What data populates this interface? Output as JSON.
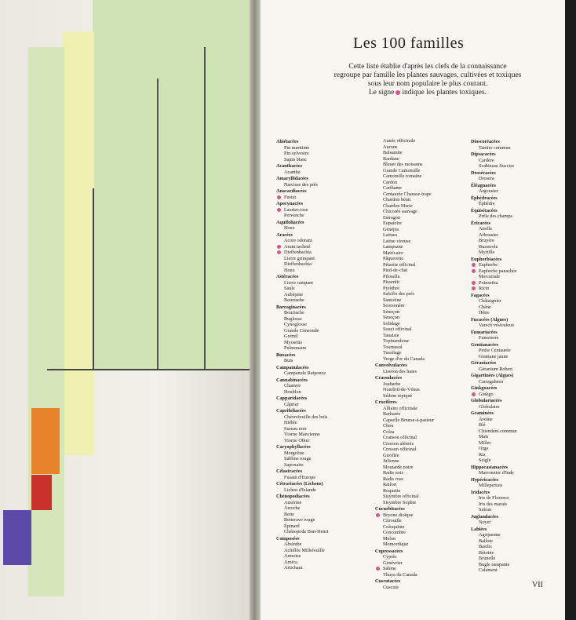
{
  "title": "Les 100 familles",
  "intro": {
    "line1": "Cette liste établie d'après les clefs de la connaissance",
    "line2": "regroupe par famille les plantes sauvages, cultivées et toxiques",
    "line3": "sous leur nom populaire le plus courant.",
    "line4a": "Le signe",
    "line4b": "indique les plantes toxiques."
  },
  "colors": {
    "toxic_dot": "#e0508a",
    "green_band": "#cfe3b4",
    "yellow_band": "#eef0b0",
    "orange_box": "#e8842c",
    "red_box": "#c8322a",
    "purple_box": "#5b4aa8"
  },
  "page_number": "VII",
  "columns": [
    [
      {
        "family": "Abiétacées",
        "plants": [
          {
            "n": "Pin maritime"
          },
          {
            "n": "Pin sylvestre"
          },
          {
            "n": "Sapin blanc"
          }
        ]
      },
      {
        "family": "Acanthacées",
        "plants": [
          {
            "n": "Acanthe"
          }
        ]
      },
      {
        "family": "Amaryllidacées",
        "plants": [
          {
            "n": "Narcisse des prés"
          }
        ]
      },
      {
        "family": "Anacardiacées",
        "plants": [
          {
            "n": "Fustet",
            "t": true
          }
        ]
      },
      {
        "family": "Apocynacées",
        "plants": [
          {
            "n": "Laurier-rose",
            "t": true
          },
          {
            "n": "Pervenche"
          }
        ]
      },
      {
        "family": "Aquifoliacées",
        "plants": [
          {
            "n": "Houx"
          }
        ]
      },
      {
        "family": "Aracées",
        "plants": [
          {
            "n": "Acore odorant"
          },
          {
            "n": "Arum tacheté",
            "t": true
          },
          {
            "n": "Dieffenbachia",
            "t": true
          },
          {
            "n": "Lierre grimpant"
          },
          {
            "n": "Dieffenbachia"
          },
          {
            "n": "Houx"
          }
        ]
      },
      {
        "family": "Astéracées",
        "plants": [
          {
            "n": "Lierre rampant"
          },
          {
            "n": "Saule"
          },
          {
            "n": "Aubépine"
          },
          {
            "n": "Bourrache"
          }
        ]
      },
      {
        "family": "Borraginacées",
        "plants": [
          {
            "n": "Bourrache"
          },
          {
            "n": "Buglosse"
          },
          {
            "n": "Cynoglosse"
          },
          {
            "n": "Grande Consoude"
          },
          {
            "n": "Grémil"
          },
          {
            "n": "Myosotis"
          },
          {
            "n": "Pulmonaire"
          }
        ]
      },
      {
        "family": "Buxacées",
        "plants": [
          {
            "n": "Buis"
          }
        ]
      },
      {
        "family": "Campanulacées",
        "plants": [
          {
            "n": "Campanule Raiponce"
          }
        ]
      },
      {
        "family": "Cannabinacées",
        "plants": [
          {
            "n": "Chanvre"
          },
          {
            "n": "Houblon"
          }
        ]
      },
      {
        "family": "Capparidacées",
        "plants": [
          {
            "n": "Câprier"
          }
        ]
      },
      {
        "family": "Caprifoliacées",
        "plants": [
          {
            "n": "Chèvrefeuille des bois"
          },
          {
            "n": "Hièble"
          },
          {
            "n": "Sureau noir"
          },
          {
            "n": "Viorne Mancienne"
          },
          {
            "n": "Viorne Obier"
          }
        ]
      },
      {
        "family": "Caryophyllacées",
        "plants": [
          {
            "n": "Morgeline"
          },
          {
            "n": "Sabline rouge"
          },
          {
            "n": "Saponaire"
          }
        ]
      },
      {
        "family": "Célastracées",
        "plants": [
          {
            "n": "Fusain d'Europe"
          }
        ]
      },
      {
        "family": "Cétrariacées (Lichens)",
        "plants": [
          {
            "n": "Lichen d'Islande"
          }
        ]
      },
      {
        "family": "Chénopodiacées",
        "plants": [
          {
            "n": "Ansérine"
          },
          {
            "n": "Arroche"
          },
          {
            "n": "Bette"
          },
          {
            "n": "Betterave rouge"
          },
          {
            "n": "Épinard"
          },
          {
            "n": "Chénopode Bon-Henri"
          }
        ]
      },
      {
        "family": "Composées",
        "plants": [
          {
            "n": "Absinthe"
          },
          {
            "n": "Achillée Millefeuille"
          },
          {
            "n": "Armoise"
          },
          {
            "n": "Arnica"
          },
          {
            "n": "Artichaut"
          }
        ]
      }
    ],
    [
      {
        "family": "",
        "plants": [
          {
            "n": "Aunée officinale"
          },
          {
            "n": "Aurone"
          },
          {
            "n": "Balsamite"
          },
          {
            "n": "Bardane"
          },
          {
            "n": "Bleuet des moissons"
          },
          {
            "n": "Grande Camomille"
          },
          {
            "n": "Camomille romaine"
          },
          {
            "n": "Cardon"
          },
          {
            "n": "Carthame"
          },
          {
            "n": "Centaurée Chausse-trape"
          },
          {
            "n": "Chardon bénit"
          },
          {
            "n": "Chardon Marie"
          },
          {
            "n": "Chicorée sauvage"
          },
          {
            "n": "Estragon"
          },
          {
            "n": "Eupatoire"
          },
          {
            "n": "Génépis"
          },
          {
            "n": "Laitues"
          },
          {
            "n": "Laitue vireuse"
          },
          {
            "n": "Lampsane"
          },
          {
            "n": "Matricaire"
          },
          {
            "n": "Pâquerette"
          },
          {
            "n": "Pétasite officinal"
          },
          {
            "n": "Pied-de-chat"
          },
          {
            "n": "Pilosella"
          },
          {
            "n": "Pissenlit"
          },
          {
            "n": "Pyrèthre"
          },
          {
            "n": "Salsifis des prés"
          },
          {
            "n": "Santoline"
          },
          {
            "n": "Scorsonère"
          },
          {
            "n": "Sèneçon"
          },
          {
            "n": "Seneçon"
          },
          {
            "n": "Solidage"
          },
          {
            "n": "Souci officinal"
          },
          {
            "n": "Tanaisie"
          },
          {
            "n": "Topinambour"
          },
          {
            "n": "Tournesol"
          },
          {
            "n": "Tussilage"
          },
          {
            "n": "Verge d'or du Canada"
          }
        ]
      },
      {
        "family": "Convolvulacées",
        "plants": [
          {
            "n": "Liseron des haies"
          }
        ]
      },
      {
        "family": "Crassulacées",
        "plants": [
          {
            "n": "Joubarbe"
          },
          {
            "n": "Nombril-de-Vénus"
          },
          {
            "n": "Sédum repiqué"
          }
        ]
      },
      {
        "family": "Crucifères",
        "plants": [
          {
            "n": "Alliaire officinale"
          },
          {
            "n": "Barbarée"
          },
          {
            "n": "Capselle Bourse-à-pasteur"
          },
          {
            "n": "Chou"
          },
          {
            "n": "Colza"
          },
          {
            "n": "Cranson officinal"
          },
          {
            "n": "Cresson alénois"
          },
          {
            "n": "Cresson officinal"
          },
          {
            "n": "Giroflée"
          },
          {
            "n": "Julienne"
          },
          {
            "n": "Moutarde noire"
          },
          {
            "n": "Radis noir"
          },
          {
            "n": "Radis rose"
          },
          {
            "n": "Raifort"
          },
          {
            "n": "Roquette"
          },
          {
            "n": "Sisymbre officinal"
          },
          {
            "n": "Sisymbre Sophie"
          }
        ]
      },
      {
        "family": "Cucurbitacées",
        "plants": [
          {
            "n": "Bryone dioïque",
            "t": true
          },
          {
            "n": "Citrouille"
          },
          {
            "n": "Coloquinte"
          },
          {
            "n": "Concombre"
          },
          {
            "n": "Melon"
          },
          {
            "n": "Momordique"
          }
        ]
      },
      {
        "family": "Cupressacées",
        "plants": [
          {
            "n": "Cyprès"
          },
          {
            "n": "Genévrier"
          },
          {
            "n": "Sabine",
            "t": true
          },
          {
            "n": "Thuya du Canada"
          }
        ]
      },
      {
        "family": "Cuscutacées",
        "plants": [
          {
            "n": "Cuscute"
          }
        ]
      }
    ],
    [
      {
        "family": "Dioscoréacées",
        "plants": [
          {
            "n": "Tamier commun"
          }
        ]
      },
      {
        "family": "Dipsacacées",
        "plants": [
          {
            "n": "Cardère"
          },
          {
            "n": "Scabieuse Succise"
          }
        ]
      },
      {
        "family": "Droséracées",
        "plants": [
          {
            "n": "Drosera"
          }
        ]
      },
      {
        "family": "Éléagnacées",
        "plants": [
          {
            "n": "Argousier"
          }
        ]
      },
      {
        "family": "Éphédracées",
        "plants": [
          {
            "n": "Éphèdre"
          }
        ]
      },
      {
        "family": "Équisétacées",
        "plants": [
          {
            "n": "Prêle des champs"
          }
        ]
      },
      {
        "family": "Éricacées",
        "plants": [
          {
            "n": "Airelle"
          },
          {
            "n": "Arbousier"
          },
          {
            "n": "Bruyère"
          },
          {
            "n": "Busserole"
          },
          {
            "n": "Myrtille"
          }
        ]
      },
      {
        "family": "Euphorbiacées",
        "plants": [
          {
            "n": "Euphorbe",
            "t": true
          },
          {
            "n": "Euphorbe panachée",
            "t": true
          },
          {
            "n": "Mercuriale"
          },
          {
            "n": "Poinsettia",
            "t": true
          },
          {
            "n": "Ricin",
            "t": true
          }
        ]
      },
      {
        "family": "Fagacées",
        "plants": [
          {
            "n": "Châtaignier"
          },
          {
            "n": "Chêne"
          },
          {
            "n": "Hêtre"
          }
        ]
      },
      {
        "family": "Fucacées (Algues)",
        "plants": [
          {
            "n": "Varech vésiculeux"
          }
        ]
      },
      {
        "family": "Fumariacées",
        "plants": [
          {
            "n": "Fumeterre"
          }
        ]
      },
      {
        "family": "Gentianacées",
        "plants": [
          {
            "n": "Petite Centaurée"
          },
          {
            "n": "Gentiane jaune"
          }
        ]
      },
      {
        "family": "Géraniacées",
        "plants": [
          {
            "n": "Géranium Robert"
          }
        ]
      },
      {
        "family": "Gigartinées (Algues)",
        "plants": [
          {
            "n": "Carragaheen"
          }
        ]
      },
      {
        "family": "Ginkgoacées",
        "plants": [
          {
            "n": "Ginkgo",
            "t": true
          }
        ]
      },
      {
        "family": "Globulariacées",
        "plants": [
          {
            "n": "Globulaire"
          }
        ]
      },
      {
        "family": "Graminées",
        "plants": [
          {
            "n": "Avoine"
          },
          {
            "n": "Blé"
          },
          {
            "n": "Chiendent commun"
          },
          {
            "n": "Maïs"
          },
          {
            "n": "Millet"
          },
          {
            "n": "Orge"
          },
          {
            "n": "Riz"
          },
          {
            "n": "Seigle"
          }
        ]
      },
      {
        "family": "Hippocastanacées",
        "plants": [
          {
            "n": "Marronnier d'Inde"
          }
        ]
      },
      {
        "family": "Hypéricacées",
        "plants": [
          {
            "n": "Millepertuis"
          }
        ]
      },
      {
        "family": "Iridacées",
        "plants": [
          {
            "n": "Iris de Florence"
          },
          {
            "n": "Iris des marais"
          },
          {
            "n": "Safran"
          }
        ]
      },
      {
        "family": "Juglandacées",
        "plants": [
          {
            "n": "Noyer"
          }
        ]
      },
      {
        "family": "Labiées",
        "plants": [
          {
            "n": "Agripaume"
          },
          {
            "n": "Ballote"
          },
          {
            "n": "Basilic"
          },
          {
            "n": "Bétoine"
          },
          {
            "n": "Brunelle"
          },
          {
            "n": "Bugle rampante"
          },
          {
            "n": "Calament"
          }
        ]
      }
    ]
  ]
}
